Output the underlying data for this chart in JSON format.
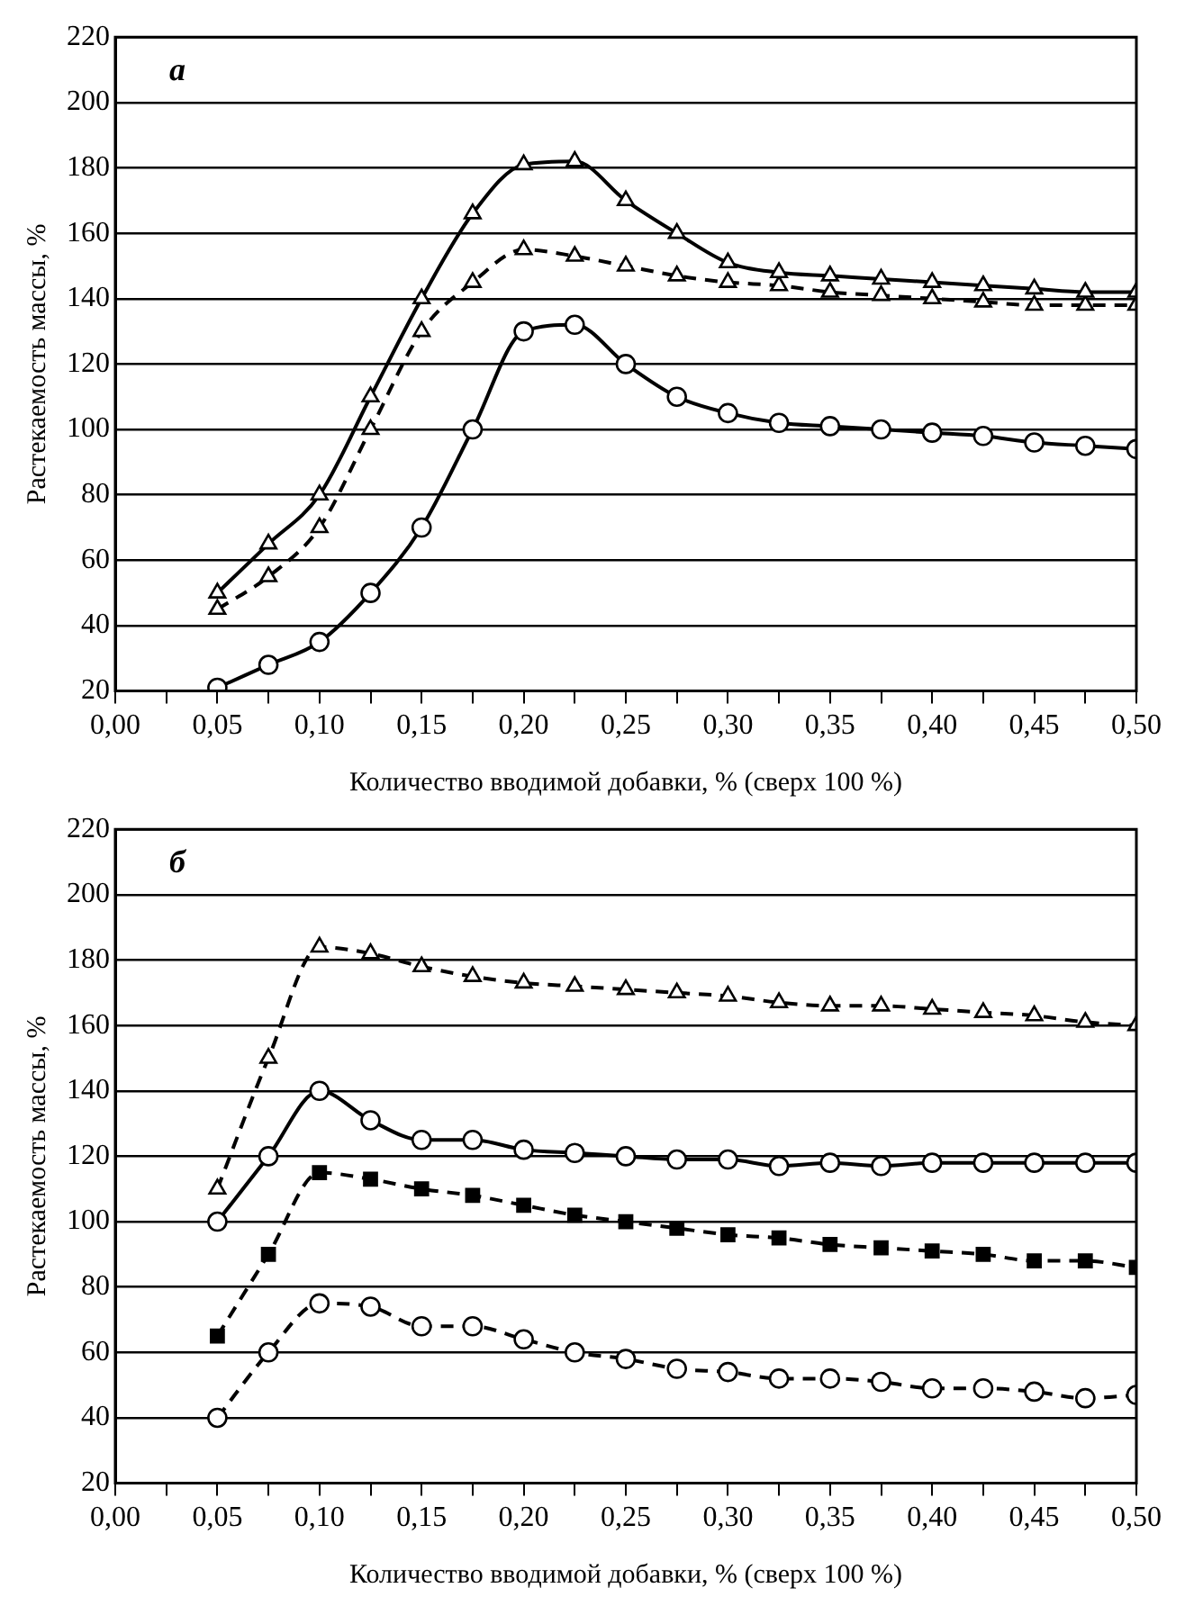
{
  "chart_data": [
    {
      "type": "line",
      "annotations": [
        "а"
      ],
      "xlabel": "Количество вводимой добавки, % (сверх 100 %)",
      "ylabel": "Растекаемость массы, %",
      "x": [
        0.05,
        0.075,
        0.1,
        0.125,
        0.15,
        0.175,
        0.2,
        0.225,
        0.25,
        0.275,
        0.3,
        0.325,
        0.35,
        0.375,
        0.4,
        0.425,
        0.45,
        0.475,
        0.5
      ],
      "series": [
        {
          "color": "#000000",
          "marker": "triangle",
          "line_style": "solid",
          "values": [
            50,
            65,
            80,
            110,
            140,
            166,
            181,
            182,
            170,
            160,
            151,
            148,
            147,
            146,
            145,
            144,
            143,
            142,
            142
          ]
        },
        {
          "color": "#000000",
          "marker": "triangle",
          "line_style": "dashed",
          "values": [
            45,
            55,
            70,
            100,
            130,
            145,
            155,
            153,
            150,
            147,
            145,
            144,
            142,
            141,
            140,
            139,
            138,
            138,
            138
          ]
        },
        {
          "color": "#000000",
          "marker": "circle",
          "line_style": "solid",
          "values": [
            21,
            28,
            35,
            50,
            70,
            100,
            130,
            132,
            120,
            110,
            105,
            102,
            101,
            100,
            99,
            98,
            96,
            95,
            94
          ]
        }
      ],
      "xlim": [
        0,
        0.5
      ],
      "ylim": [
        20,
        220
      ],
      "xticks": [
        {
          "value": 0,
          "label": "0,00"
        },
        {
          "value": 0.025,
          "label": null
        },
        {
          "value": 0.05,
          "label": "0,05"
        },
        {
          "value": 0.075,
          "label": null
        },
        {
          "value": 0.1,
          "label": "0,10"
        },
        {
          "value": 0.125,
          "label": null
        },
        {
          "value": 0.15,
          "label": "0,15"
        },
        {
          "value": 0.175,
          "label": null
        },
        {
          "value": 0.2,
          "label": "0,20"
        },
        {
          "value": 0.225,
          "label": null
        },
        {
          "value": 0.25,
          "label": "0,25"
        },
        {
          "value": 0.275,
          "label": null
        },
        {
          "value": 0.3,
          "label": "0,30"
        },
        {
          "value": 0.325,
          "label": null
        },
        {
          "value": 0.35,
          "label": "0,35"
        },
        {
          "value": 0.375,
          "label": null
        },
        {
          "value": 0.4,
          "label": "0,40"
        },
        {
          "value": 0.425,
          "label": null
        },
        {
          "value": 0.45,
          "label": "0,45"
        },
        {
          "value": 0.475,
          "label": null
        },
        {
          "value": 0.5,
          "label": "0,50"
        }
      ],
      "yticks": [
        20,
        40,
        60,
        80,
        100,
        120,
        140,
        160,
        180,
        200,
        220
      ],
      "grid": "y"
    },
    {
      "type": "line",
      "annotations": [
        "б"
      ],
      "xlabel": "Количество вводимой добавки, % (сверх 100 %)",
      "ylabel": "Растекаемость массы, %",
      "x": [
        0.05,
        0.075,
        0.1,
        0.125,
        0.15,
        0.175,
        0.2,
        0.225,
        0.25,
        0.275,
        0.3,
        0.325,
        0.35,
        0.375,
        0.4,
        0.425,
        0.45,
        0.475,
        0.5
      ],
      "series": [
        {
          "color": "#000000",
          "marker": "triangle",
          "line_style": "dashed",
          "values": [
            110,
            150,
            184,
            182,
            178,
            175,
            173,
            172,
            171,
            170,
            169,
            167,
            166,
            166,
            165,
            164,
            163,
            161,
            160
          ]
        },
        {
          "color": "#000000",
          "marker": "circle",
          "line_style": "solid",
          "values": [
            100,
            120,
            140,
            131,
            125,
            125,
            122,
            121,
            120,
            119,
            119,
            117,
            118,
            117,
            118,
            118,
            118,
            118,
            118
          ]
        },
        {
          "color": "#000000",
          "marker": "square",
          "line_style": "dashed",
          "values": [
            65,
            90,
            115,
            113,
            110,
            108,
            105,
            102,
            100,
            98,
            96,
            95,
            93,
            92,
            91,
            90,
            88,
            88,
            86
          ]
        },
        {
          "color": "#000000",
          "marker": "circle",
          "line_style": "dashed",
          "values": [
            40,
            60,
            75,
            74,
            68,
            68,
            64,
            60,
            58,
            55,
            54,
            52,
            52,
            51,
            49,
            49,
            48,
            46,
            47
          ]
        }
      ],
      "xlim": [
        0,
        0.5
      ],
      "ylim": [
        20,
        220
      ],
      "xticks": [
        {
          "value": 0,
          "label": "0,00"
        },
        {
          "value": 0.025,
          "label": null
        },
        {
          "value": 0.05,
          "label": "0,05"
        },
        {
          "value": 0.075,
          "label": null
        },
        {
          "value": 0.1,
          "label": "0,10"
        },
        {
          "value": 0.125,
          "label": null
        },
        {
          "value": 0.15,
          "label": "0,15"
        },
        {
          "value": 0.175,
          "label": null
        },
        {
          "value": 0.2,
          "label": "0,20"
        },
        {
          "value": 0.225,
          "label": null
        },
        {
          "value": 0.25,
          "label": "0,25"
        },
        {
          "value": 0.275,
          "label": null
        },
        {
          "value": 0.3,
          "label": "0,30"
        },
        {
          "value": 0.325,
          "label": null
        },
        {
          "value": 0.35,
          "label": "0,35"
        },
        {
          "value": 0.375,
          "label": null
        },
        {
          "value": 0.4,
          "label": "0,40"
        },
        {
          "value": 0.425,
          "label": null
        },
        {
          "value": 0.45,
          "label": "0,45"
        },
        {
          "value": 0.475,
          "label": null
        },
        {
          "value": 0.5,
          "label": "0,50"
        }
      ],
      "yticks": [
        20,
        40,
        60,
        80,
        100,
        120,
        140,
        160,
        180,
        200,
        220
      ],
      "grid": "y"
    }
  ]
}
